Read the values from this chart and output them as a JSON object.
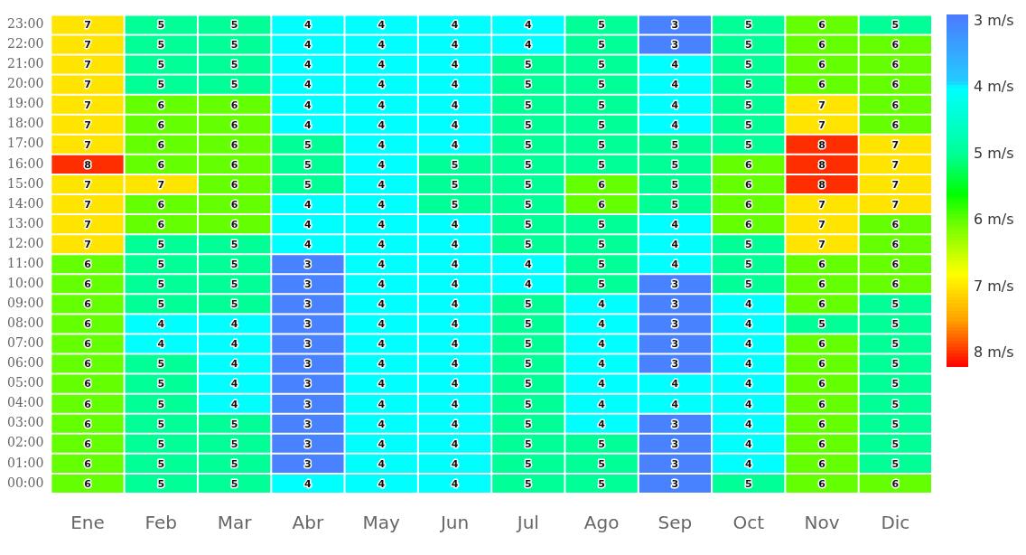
{
  "chart_data": {
    "type": "heatmap",
    "categories": [
      "Ene",
      "Feb",
      "Mar",
      "Abr",
      "May",
      "Jun",
      "Jul",
      "Ago",
      "Sep",
      "Oct",
      "Nov",
      "Dic"
    ],
    "y_categories": [
      "23:00",
      "22:00",
      "21:00",
      "20:00",
      "19:00",
      "18:00",
      "17:00",
      "16:00",
      "15:00",
      "14:00",
      "13:00",
      "12:00",
      "11:00",
      "10:00",
      "09:00",
      "08:00",
      "07:00",
      "06:00",
      "05:00",
      "04:00",
      "03:00",
      "02:00",
      "01:00",
      "00:00"
    ],
    "cells": [
      [
        7,
        5,
        5,
        4,
        4,
        4,
        4,
        5,
        3,
        5,
        6,
        5
      ],
      [
        7,
        5,
        5,
        4,
        4,
        4,
        4,
        5,
        3,
        5,
        6,
        6
      ],
      [
        7,
        5,
        5,
        4,
        4,
        4,
        5,
        5,
        4,
        5,
        6,
        6
      ],
      [
        7,
        5,
        5,
        4,
        4,
        4,
        5,
        5,
        4,
        5,
        6,
        6
      ],
      [
        7,
        6,
        6,
        4,
        4,
        4,
        5,
        5,
        4,
        5,
        7,
        6
      ],
      [
        7,
        6,
        6,
        4,
        4,
        4,
        5,
        5,
        4,
        5,
        7,
        6
      ],
      [
        7,
        6,
        6,
        5,
        4,
        4,
        5,
        5,
        5,
        5,
        8,
        7
      ],
      [
        8,
        6,
        6,
        5,
        4,
        5,
        5,
        5,
        5,
        6,
        8,
        7
      ],
      [
        7,
        7,
        6,
        5,
        4,
        5,
        5,
        6,
        5,
        6,
        8,
        7
      ],
      [
        7,
        6,
        6,
        4,
        4,
        5,
        5,
        6,
        5,
        6,
        7,
        7
      ],
      [
        7,
        6,
        6,
        4,
        4,
        4,
        5,
        5,
        4,
        6,
        7,
        6
      ],
      [
        7,
        5,
        5,
        4,
        4,
        4,
        5,
        5,
        4,
        5,
        7,
        6
      ],
      [
        6,
        5,
        5,
        3,
        4,
        4,
        4,
        5,
        4,
        5,
        6,
        6
      ],
      [
        6,
        5,
        5,
        3,
        4,
        4,
        4,
        5,
        3,
        5,
        6,
        6
      ],
      [
        6,
        5,
        5,
        3,
        4,
        4,
        5,
        4,
        3,
        4,
        6,
        5
      ],
      [
        6,
        4,
        4,
        3,
        4,
        4,
        5,
        4,
        3,
        4,
        5,
        5
      ],
      [
        6,
        4,
        4,
        3,
        4,
        4,
        5,
        4,
        3,
        4,
        6,
        5
      ],
      [
        6,
        5,
        4,
        3,
        4,
        4,
        5,
        4,
        3,
        4,
        6,
        5
      ],
      [
        6,
        5,
        4,
        3,
        4,
        4,
        5,
        4,
        4,
        4,
        6,
        5
      ],
      [
        6,
        5,
        4,
        3,
        4,
        4,
        5,
        4,
        4,
        4,
        6,
        5
      ],
      [
        6,
        5,
        5,
        3,
        4,
        4,
        5,
        4,
        3,
        4,
        6,
        5
      ],
      [
        6,
        5,
        5,
        3,
        4,
        4,
        5,
        5,
        3,
        4,
        6,
        5
      ],
      [
        6,
        5,
        5,
        3,
        4,
        4,
        5,
        5,
        3,
        4,
        6,
        5
      ],
      [
        6,
        5,
        5,
        4,
        4,
        4,
        5,
        5,
        3,
        5,
        6,
        6
      ]
    ],
    "clim": [
      2.9,
      8.2
    ],
    "cticks": [
      {
        "value": 3,
        "label": "3 m/s"
      },
      {
        "value": 4,
        "label": "4 m/s"
      },
      {
        "value": 5,
        "label": "5 m/s"
      },
      {
        "value": 6,
        "label": "6 m/s"
      },
      {
        "value": 7,
        "label": "7 m/s"
      },
      {
        "value": 8,
        "label": "8 m/s"
      }
    ],
    "data_labels": true
  }
}
